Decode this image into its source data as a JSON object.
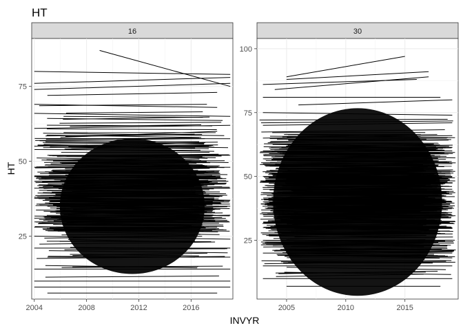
{
  "title": "HT",
  "chart_data": [
    {
      "type": "line",
      "panel": "16",
      "title": "HT",
      "xlabel": "INVYR",
      "ylabel": "HT",
      "xlim": [
        2003.8,
        2019.2
      ],
      "ylim": [
        4,
        91
      ],
      "xticks": [
        2004,
        2008,
        2012,
        2016
      ],
      "xtick_labels": [
        "2004",
        "2008",
        "2012",
        "2016"
      ],
      "yticks": [
        25,
        50,
        75
      ],
      "ytick_labels": [
        "25",
        "50",
        "75"
      ],
      "grid": true,
      "legend": "none",
      "series_count_note": "",
      "series": [
        {
          "x": [
            2009,
            2019
          ],
          "y": [
            87,
            75
          ]
        },
        {
          "x": [
            2004,
            2019
          ],
          "y": [
            80,
            79
          ]
        },
        {
          "x": [
            2004,
            2019
          ],
          "y": [
            76,
            78
          ]
        },
        {
          "x": [
            2004,
            2019
          ],
          "y": [
            74,
            76
          ]
        },
        {
          "x": [
            2005,
            2018
          ],
          "y": [
            72,
            73
          ]
        },
        {
          "x": [
            2004,
            2018
          ],
          "y": [
            69,
            68
          ]
        },
        {
          "x": [
            2004,
            2019
          ],
          "y": [
            66,
            65
          ]
        },
        {
          "x": [
            2004,
            2019
          ],
          "y": [
            61,
            62
          ]
        },
        {
          "x": [
            2006,
            2018
          ],
          "y": [
            58,
            60
          ]
        },
        {
          "x": [
            2004,
            2017
          ],
          "y": [
            55,
            56
          ]
        },
        {
          "x": [
            2005,
            2019
          ],
          "y": [
            52,
            52
          ]
        },
        {
          "x": [
            2004,
            2019
          ],
          "y": [
            48,
            48
          ]
        },
        {
          "x": [
            2004,
            2018
          ],
          "y": [
            45,
            44
          ]
        },
        {
          "x": [
            2004,
            2019
          ],
          "y": [
            41,
            41
          ]
        },
        {
          "x": [
            2004,
            2019
          ],
          "y": [
            38,
            37
          ]
        },
        {
          "x": [
            2005,
            2019
          ],
          "y": [
            35,
            35
          ]
        },
        {
          "x": [
            2004,
            2019
          ],
          "y": [
            31,
            32
          ]
        },
        {
          "x": [
            2004,
            2018
          ],
          "y": [
            28,
            28
          ]
        },
        {
          "x": [
            2004,
            2019
          ],
          "y": [
            25,
            24
          ]
        },
        {
          "x": [
            2004,
            2019
          ],
          "y": [
            21,
            21
          ]
        },
        {
          "x": [
            2005,
            2019
          ],
          "y": [
            18,
            18
          ]
        },
        {
          "x": [
            2004,
            2019
          ],
          "y": [
            14,
            14
          ]
        },
        {
          "x": [
            2004,
            2019
          ],
          "y": [
            10,
            10
          ]
        },
        {
          "x": [
            2004,
            2019
          ],
          "y": [
            8,
            8
          ]
        },
        {
          "x": [
            2005,
            2018
          ],
          "y": [
            6,
            6
          ]
        }
      ]
    },
    {
      "type": "line",
      "panel": "30",
      "title": "HT",
      "xlabel": "INVYR",
      "ylabel": "HT",
      "xlim": [
        2002.5,
        2019.5
      ],
      "ylim": [
        2,
        104
      ],
      "xticks": [
        2005,
        2010,
        2015
      ],
      "xtick_labels": [
        "2005",
        "2010",
        "2015"
      ],
      "yticks": [
        25,
        50,
        75,
        100
      ],
      "ytick_labels": [
        "25",
        "50",
        "75",
        "100"
      ],
      "grid": true,
      "legend": "none",
      "series": [
        {
          "x": [
            2005,
            2015
          ],
          "y": [
            89,
            97
          ]
        },
        {
          "x": [
            2005,
            2017
          ],
          "y": [
            88,
            91
          ]
        },
        {
          "x": [
            2003,
            2016
          ],
          "y": [
            86,
            88
          ]
        },
        {
          "x": [
            2004,
            2017
          ],
          "y": [
            84,
            89
          ]
        },
        {
          "x": [
            2003,
            2018
          ],
          "y": [
            81,
            81
          ]
        },
        {
          "x": [
            2006,
            2019
          ],
          "y": [
            78,
            80
          ]
        },
        {
          "x": [
            2003,
            2019
          ],
          "y": [
            75,
            74
          ]
        },
        {
          "x": [
            2003,
            2019
          ],
          "y": [
            70,
            71
          ]
        },
        {
          "x": [
            2003,
            2019
          ],
          "y": [
            65,
            66
          ]
        },
        {
          "x": [
            2003,
            2019
          ],
          "y": [
            60,
            60
          ]
        },
        {
          "x": [
            2003,
            2019
          ],
          "y": [
            55,
            55
          ]
        },
        {
          "x": [
            2003,
            2019
          ],
          "y": [
            50,
            50
          ]
        },
        {
          "x": [
            2003,
            2019
          ],
          "y": [
            45,
            45
          ]
        },
        {
          "x": [
            2003,
            2019
          ],
          "y": [
            40,
            40
          ]
        },
        {
          "x": [
            2003,
            2019
          ],
          "y": [
            35,
            35
          ]
        },
        {
          "x": [
            2003,
            2019
          ],
          "y": [
            30,
            30
          ]
        },
        {
          "x": [
            2003,
            2019
          ],
          "y": [
            25,
            25
          ]
        },
        {
          "x": [
            2003,
            2019
          ],
          "y": [
            20,
            20
          ]
        },
        {
          "x": [
            2003,
            2019
          ],
          "y": [
            15,
            15
          ]
        },
        {
          "x": [
            2003,
            2019
          ],
          "y": [
            10,
            10
          ]
        },
        {
          "x": [
            2005,
            2018
          ],
          "y": [
            7,
            7
          ]
        }
      ]
    }
  ]
}
